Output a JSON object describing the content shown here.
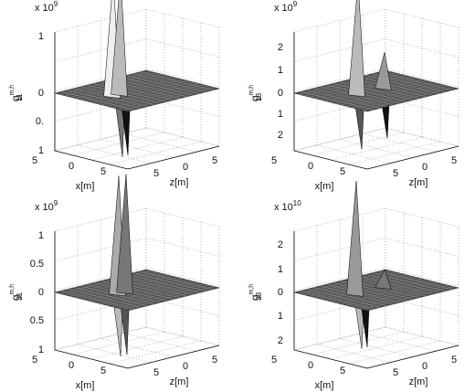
{
  "panels": [
    {
      "exponent": "x 10",
      "power": "9",
      "ylabel": {
        "base": "g",
        "sup": "m,h",
        "sub": "11"
      },
      "yticks": [
        "1",
        "0",
        "0.",
        "1"
      ],
      "xticks": [
        "5",
        "0",
        "5"
      ],
      "zticks": [
        "5",
        "0",
        "5"
      ],
      "xlabel": "x[m]",
      "zlabel": "z[m]"
    },
    {
      "exponent": "x 10",
      "power": "9",
      "ylabel": {
        "base": "g",
        "sup": "m,h",
        "sub": "13"
      },
      "yticks": [
        "2",
        "1",
        "0",
        "1",
        "2"
      ],
      "xticks": [
        "5",
        "0",
        "5"
      ],
      "zticks": [
        "5",
        "0",
        "5"
      ],
      "xlabel": "x[m]",
      "zlabel": "z[m]"
    },
    {
      "exponent": "x 10",
      "power": "9",
      "ylabel": {
        "base": "g",
        "sup": "m,h",
        "sub": "31"
      },
      "yticks": [
        "1",
        "0.5",
        "0",
        "0.5",
        "1"
      ],
      "xticks": [
        "5",
        "0",
        "5"
      ],
      "zticks": [
        "5",
        "0",
        "5"
      ],
      "xlabel": "x[m]",
      "zlabel": "z[m]"
    },
    {
      "exponent": "x 10",
      "power": "10",
      "ylabel": {
        "base": "g",
        "sup": "m,h",
        "sub": "33"
      },
      "yticks": [
        "2",
        "1",
        "0",
        "1",
        "2"
      ],
      "xticks": [
        "5",
        "0",
        "5"
      ],
      "zticks": [
        "5",
        "0",
        "5"
      ],
      "xlabel": "x[m]",
      "zlabel": "z[m]"
    }
  ]
}
